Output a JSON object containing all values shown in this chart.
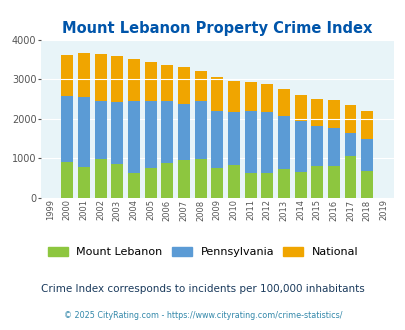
{
  "title": "Mount Lebanon Property Crime Index",
  "years": [
    1999,
    2000,
    2001,
    2002,
    2003,
    2004,
    2005,
    2006,
    2007,
    2008,
    2009,
    2010,
    2011,
    2012,
    2013,
    2014,
    2015,
    2016,
    2017,
    2018,
    2019
  ],
  "mount_lebanon": [
    0,
    900,
    775,
    975,
    850,
    625,
    750,
    875,
    950,
    975,
    750,
    825,
    625,
    625,
    725,
    650,
    800,
    800,
    1050,
    675,
    0
  ],
  "pennsylvania": [
    0,
    2580,
    2560,
    2460,
    2420,
    2450,
    2450,
    2460,
    2380,
    2440,
    2200,
    2160,
    2200,
    2160,
    2060,
    1950,
    1810,
    1780,
    1650,
    1490,
    0
  ],
  "national": [
    0,
    3610,
    3650,
    3625,
    3590,
    3520,
    3445,
    3370,
    3320,
    3210,
    3050,
    2960,
    2930,
    2870,
    2740,
    2600,
    2490,
    2480,
    2360,
    2200,
    0
  ],
  "mount_lebanon_color": "#8dc63f",
  "pennsylvania_color": "#5b9bd5",
  "national_color": "#f0a500",
  "bg_color": "#e8f4f8",
  "ylim": [
    0,
    4000
  ],
  "yticks": [
    0,
    1000,
    2000,
    3000,
    4000
  ],
  "subtitle": "Crime Index corresponds to incidents per 100,000 inhabitants",
  "footer": "© 2025 CityRating.com - https://www.cityrating.com/crime-statistics/",
  "title_color": "#0055aa",
  "subtitle_color": "#1a3a5c",
  "footer_color": "#3388aa"
}
